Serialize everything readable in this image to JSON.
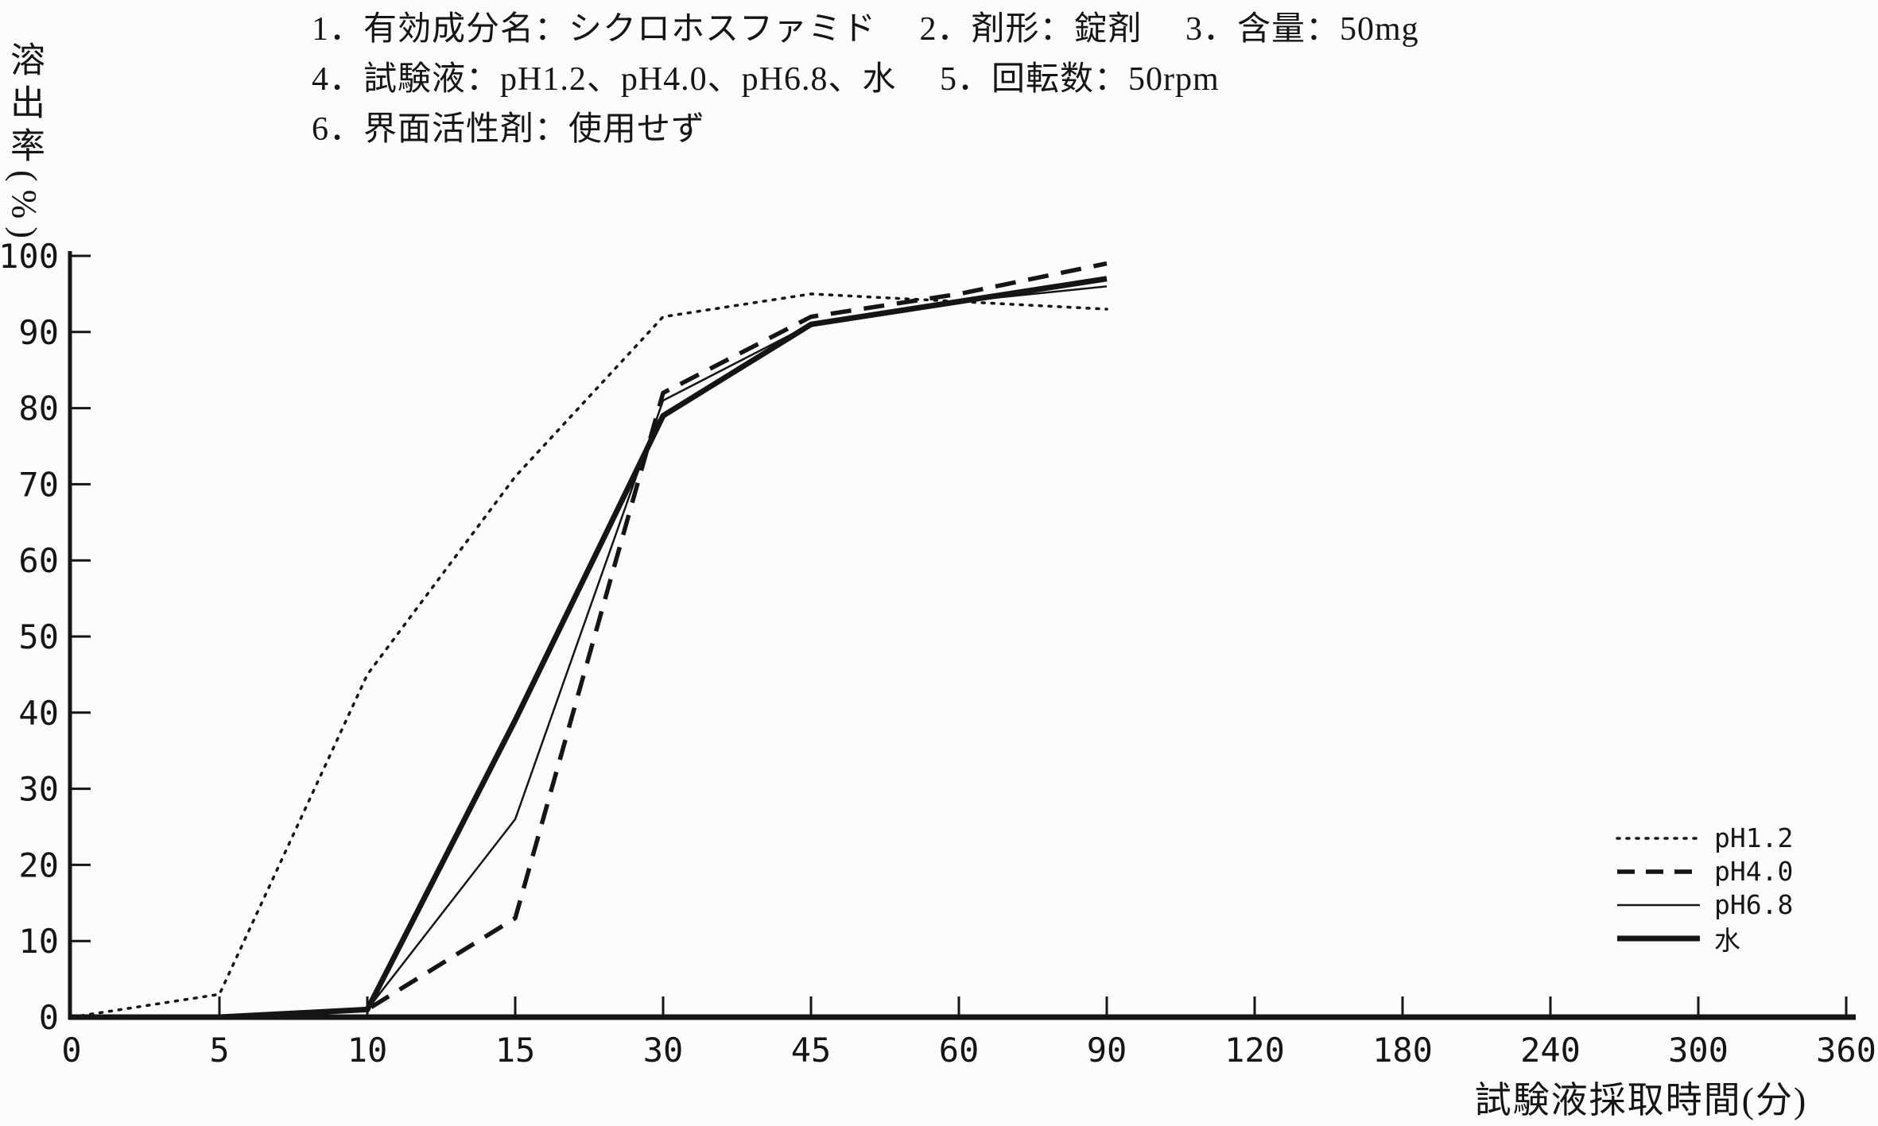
{
  "header": {
    "line1": "1．有効成分名：シクロホスファミド　 2．剤形：錠剤　 3．含量：50mg",
    "line2": "4．試験液：pH1.2、pH4.0、pH6.8、水　 5．回転数：50rpm",
    "line3": "6．界面活性剤：使用せず"
  },
  "chart_data": {
    "type": "line",
    "title": "",
    "ylabel": "溶出率(%)",
    "xlabel": "試験液採取時間(分)",
    "x_scale": "categorical",
    "x_tick_labels": [
      "0",
      "5",
      "10",
      "15",
      "30",
      "45",
      "60",
      "90",
      "120",
      "180",
      "240",
      "300",
      "360"
    ],
    "y_ticks": [
      0,
      10,
      20,
      30,
      40,
      50,
      60,
      70,
      80,
      90,
      100
    ],
    "ylim": [
      0,
      100
    ],
    "grid": false,
    "legend_position": "inside-bottom-right",
    "sample_times_min": [
      0,
      5,
      10,
      15,
      30,
      45,
      60,
      90
    ],
    "series": [
      {
        "name": "pH1.2",
        "style": "dotted",
        "values": [
          0,
          3,
          45,
          71,
          92,
          95,
          94,
          93
        ]
      },
      {
        "name": "pH4.0",
        "style": "dashed",
        "values": [
          0,
          0,
          1,
          13,
          82,
          92,
          95,
          99
        ]
      },
      {
        "name": "pH6.8",
        "style": "thin-solid",
        "values": [
          0,
          0,
          1,
          26,
          81,
          91,
          94,
          96
        ]
      },
      {
        "name": "水",
        "style": "thick-solid",
        "values": [
          0,
          0,
          1,
          39,
          79,
          91,
          94,
          97
        ]
      }
    ],
    "ink_color": "#151515"
  }
}
